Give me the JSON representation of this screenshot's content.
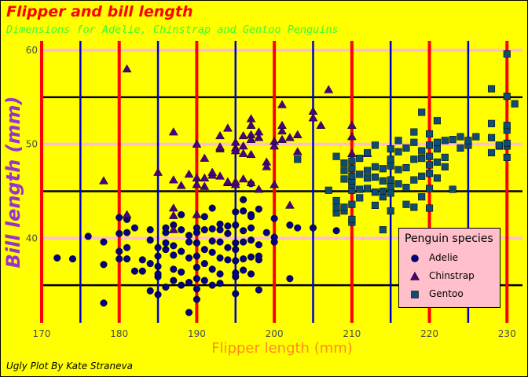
{
  "caption": "Ugly Plot By Kate Straneva",
  "chart_data": {
    "type": "scatter",
    "title": "Flipper and bill length",
    "subtitle": "Dimensions for Adelie, Chinstrap and Gentoo Penguins",
    "xlabel": "Flipper length (mm)",
    "ylabel": "Bill length (mm)",
    "xlim": [
      170,
      232
    ],
    "ylim": [
      31,
      61
    ],
    "xticks": [
      170,
      180,
      190,
      200,
      210,
      220,
      230
    ],
    "yticks": [
      40,
      50,
      60
    ],
    "grid": true,
    "legend": {
      "title": "Penguin species",
      "position": "right"
    },
    "colors": {
      "background": "#ffff00",
      "panel": "#ffff00",
      "major_vgrid": "#ff0000",
      "minor_vgrid": "#0000cc",
      "major_hgrid": "#ffc0cb",
      "minor_hgrid": "#000000",
      "title": "#ff0000",
      "subtitle": "#33ff33",
      "xlabel": "#ff8c1a",
      "ylabel": "#9933cc",
      "legend_bg": "#ffc0cb"
    },
    "series": [
      {
        "name": "Adelie",
        "marker": "circle",
        "color": "#000080",
        "points": [
          [
            172,
            37.9
          ],
          [
            174,
            37.8
          ],
          [
            176,
            40.2
          ],
          [
            178,
            33.1
          ],
          [
            178,
            37.2
          ],
          [
            178,
            39.6
          ],
          [
            180,
            37.8
          ],
          [
            180,
            38.6
          ],
          [
            180,
            40.5
          ],
          [
            180,
            42.2
          ],
          [
            181,
            37.8
          ],
          [
            181,
            39.0
          ],
          [
            181,
            40.6
          ],
          [
            181,
            42.0
          ],
          [
            182,
            36.5
          ],
          [
            182,
            41.1
          ],
          [
            183,
            37.7
          ],
          [
            183,
            36.5
          ],
          [
            184,
            37.3
          ],
          [
            184,
            34.4
          ],
          [
            184,
            39.8
          ],
          [
            184,
            40.9
          ],
          [
            185,
            34.0
          ],
          [
            185,
            35.9
          ],
          [
            185,
            37.0
          ],
          [
            185,
            38.1
          ],
          [
            185,
            39.0
          ],
          [
            185,
            36.2
          ],
          [
            186,
            34.8
          ],
          [
            186,
            38.8
          ],
          [
            186,
            39.5
          ],
          [
            186,
            40.6
          ],
          [
            186,
            41.1
          ],
          [
            187,
            35.5
          ],
          [
            187,
            36.7
          ],
          [
            187,
            38.2
          ],
          [
            187,
            39.2
          ],
          [
            187,
            41.4
          ],
          [
            188,
            35.0
          ],
          [
            188,
            36.4
          ],
          [
            188,
            38.6
          ],
          [
            188,
            40.9
          ],
          [
            188,
            42.5
          ],
          [
            189,
            32.1
          ],
          [
            189,
            35.3
          ],
          [
            189,
            37.9
          ],
          [
            189,
            39.6
          ],
          [
            189,
            40.3
          ],
          [
            190,
            34.6
          ],
          [
            190,
            35.7
          ],
          [
            190,
            36.9
          ],
          [
            190,
            38.1
          ],
          [
            190,
            39.5
          ],
          [
            190,
            40.6
          ],
          [
            190,
            41.1
          ],
          [
            190,
            33.5
          ],
          [
            191,
            35.5
          ],
          [
            191,
            37.3
          ],
          [
            191,
            38.8
          ],
          [
            191,
            40.9
          ],
          [
            191,
            42.3
          ],
          [
            192,
            35.0
          ],
          [
            192,
            36.7
          ],
          [
            192,
            38.5
          ],
          [
            192,
            39.7
          ],
          [
            192,
            41.0
          ],
          [
            192,
            43.2
          ],
          [
            193,
            35.2
          ],
          [
            193,
            36.2
          ],
          [
            193,
            37.9
          ],
          [
            193,
            39.6
          ],
          [
            193,
            40.9
          ],
          [
            193,
            41.5
          ],
          [
            194,
            37.7
          ],
          [
            194,
            39.0
          ],
          [
            194,
            40.5
          ],
          [
            194,
            41.3
          ],
          [
            195,
            34.1
          ],
          [
            195,
            35.9
          ],
          [
            195,
            36.3
          ],
          [
            195,
            37.6
          ],
          [
            195,
            38.8
          ],
          [
            195,
            39.5
          ],
          [
            195,
            41.4
          ],
          [
            195,
            42.8
          ],
          [
            196,
            36.6
          ],
          [
            196,
            37.8
          ],
          [
            196,
            39.6
          ],
          [
            196,
            40.8
          ],
          [
            196,
            42.9
          ],
          [
            196,
            44.1
          ],
          [
            197,
            36.2
          ],
          [
            197,
            38.0
          ],
          [
            197,
            39.8
          ],
          [
            197,
            41.1
          ],
          [
            197,
            42.5
          ],
          [
            197,
            42.3
          ],
          [
            197,
            45.8
          ],
          [
            198,
            34.5
          ],
          [
            198,
            37.7
          ],
          [
            198,
            38.1
          ],
          [
            198,
            39.3
          ],
          [
            198,
            43.1
          ],
          [
            199,
            40.6
          ],
          [
            200,
            39.6
          ],
          [
            200,
            40.1
          ],
          [
            200,
            42.1
          ],
          [
            202,
            35.7
          ],
          [
            202,
            41.4
          ],
          [
            203,
            41.1
          ],
          [
            205,
            41.1
          ],
          [
            208,
            40.8
          ]
        ]
      },
      {
        "name": "Chinstrap",
        "marker": "triangle",
        "color": "#4b0082",
        "points": [
          [
            178,
            46.1
          ],
          [
            181,
            58.0
          ],
          [
            181,
            42.5
          ],
          [
            185,
            47.0
          ],
          [
            187,
            46.2
          ],
          [
            187,
            51.3
          ],
          [
            187,
            43.2
          ],
          [
            187,
            42.4
          ],
          [
            187,
            40.9
          ],
          [
            188,
            45.6
          ],
          [
            189,
            46.8
          ],
          [
            190,
            46.4
          ],
          [
            190,
            42.5
          ],
          [
            190,
            50.0
          ],
          [
            190,
            45.7
          ],
          [
            191,
            48.5
          ],
          [
            191,
            46.4
          ],
          [
            191,
            45.5
          ],
          [
            192,
            46.7
          ],
          [
            192,
            47.0
          ],
          [
            193,
            46.6
          ],
          [
            193,
            50.9
          ],
          [
            193,
            49.5
          ],
          [
            193,
            49.7
          ],
          [
            194,
            45.9
          ],
          [
            194,
            51.7
          ],
          [
            194,
            46.0
          ],
          [
            195,
            45.7
          ],
          [
            195,
            49.6
          ],
          [
            195,
            49.3
          ],
          [
            195,
            50.2
          ],
          [
            195,
            46.0
          ],
          [
            196,
            46.3
          ],
          [
            196,
            49.0
          ],
          [
            196,
            50.9
          ],
          [
            196,
            49.8
          ],
          [
            197,
            51.0
          ],
          [
            197,
            52.0
          ],
          [
            197,
            52.7
          ],
          [
            197,
            50.5
          ],
          [
            197,
            48.9
          ],
          [
            197,
            45.9
          ],
          [
            198,
            50.7
          ],
          [
            198,
            51.3
          ],
          [
            198,
            45.2
          ],
          [
            199,
            48.1
          ],
          [
            199,
            47.6
          ],
          [
            200,
            49.8
          ],
          [
            200,
            50.3
          ],
          [
            200,
            45.7
          ],
          [
            201,
            50.5
          ],
          [
            201,
            51.4
          ],
          [
            201,
            52.0
          ],
          [
            201,
            54.2
          ],
          [
            202,
            43.5
          ],
          [
            202,
            50.7
          ],
          [
            203,
            51.0
          ],
          [
            203,
            49.2
          ],
          [
            205,
            52.8
          ],
          [
            205,
            53.5
          ],
          [
            206,
            52.0
          ],
          [
            207,
            55.8
          ],
          [
            210,
            52.0
          ],
          [
            210,
            50.8
          ],
          [
            210,
            49.0
          ],
          [
            212,
            49.0
          ]
        ]
      },
      {
        "name": "Gentoo",
        "marker": "square",
        "color": "#0d4d73",
        "points": [
          [
            203,
            48.4
          ],
          [
            207,
            45.1
          ],
          [
            208,
            42.7
          ],
          [
            208,
            43.3
          ],
          [
            208,
            44.0
          ],
          [
            208,
            48.7
          ],
          [
            209,
            42.9
          ],
          [
            209,
            43.3
          ],
          [
            209,
            48.0
          ],
          [
            209,
            47.2
          ],
          [
            209,
            46.3
          ],
          [
            210,
            41.7
          ],
          [
            210,
            42.0
          ],
          [
            210,
            43.6
          ],
          [
            210,
            45.1
          ],
          [
            210,
            45.7
          ],
          [
            210,
            46.1
          ],
          [
            210,
            46.6
          ],
          [
            210,
            47.4
          ],
          [
            210,
            48.2
          ],
          [
            211,
            44.3
          ],
          [
            211,
            45.2
          ],
          [
            211,
            46.8
          ],
          [
            211,
            48.5
          ],
          [
            212,
            45.3
          ],
          [
            212,
            46.4
          ],
          [
            212,
            47.2
          ],
          [
            212,
            49.1
          ],
          [
            213,
            43.5
          ],
          [
            213,
            44.9
          ],
          [
            213,
            46.5
          ],
          [
            213,
            47.6
          ],
          [
            213,
            49.9
          ],
          [
            214,
            40.9
          ],
          [
            214,
            44.4
          ],
          [
            214,
            45.0
          ],
          [
            214,
            46.1
          ],
          [
            214,
            47.4
          ],
          [
            215,
            42.9
          ],
          [
            215,
            44.8
          ],
          [
            215,
            45.5
          ],
          [
            215,
            46.2
          ],
          [
            215,
            47.7
          ],
          [
            215,
            48.4
          ],
          [
            215,
            49.5
          ],
          [
            216,
            45.8
          ],
          [
            216,
            47.3
          ],
          [
            216,
            49.2
          ],
          [
            216,
            50.4
          ],
          [
            217,
            43.6
          ],
          [
            217,
            45.4
          ],
          [
            217,
            47.5
          ],
          [
            217,
            49.6
          ],
          [
            218,
            43.3
          ],
          [
            218,
            46.2
          ],
          [
            218,
            48.4
          ],
          [
            218,
            50.2
          ],
          [
            218,
            51.3
          ],
          [
            219,
            44.4
          ],
          [
            219,
            46.6
          ],
          [
            219,
            48.5
          ],
          [
            219,
            49.3
          ],
          [
            219,
            53.4
          ],
          [
            220,
            43.2
          ],
          [
            220,
            45.3
          ],
          [
            220,
            46.9
          ],
          [
            220,
            47.8
          ],
          [
            220,
            48.7
          ],
          [
            220,
            49.9
          ],
          [
            220,
            51.1
          ],
          [
            221,
            46.4
          ],
          [
            221,
            48.1
          ],
          [
            221,
            49.5
          ],
          [
            221,
            50.2
          ],
          [
            221,
            52.5
          ],
          [
            222,
            47.6
          ],
          [
            222,
            48.6
          ],
          [
            222,
            50.4
          ],
          [
            223,
            45.2
          ],
          [
            223,
            50.5
          ],
          [
            224,
            49.6
          ],
          [
            224,
            50.8
          ],
          [
            225,
            49.9
          ],
          [
            225,
            50.4
          ],
          [
            226,
            50.8
          ],
          [
            228,
            49.1
          ],
          [
            228,
            50.7
          ],
          [
            228,
            52.2
          ],
          [
            228,
            55.9
          ],
          [
            229,
            49.8
          ],
          [
            229,
            49.9
          ],
          [
            230,
            48.6
          ],
          [
            230,
            49.8
          ],
          [
            230,
            50.1
          ],
          [
            230,
            51.5
          ],
          [
            230,
            52.0
          ],
          [
            230,
            55.1
          ],
          [
            230,
            59.6
          ],
          [
            231,
            54.3
          ]
        ]
      }
    ]
  }
}
